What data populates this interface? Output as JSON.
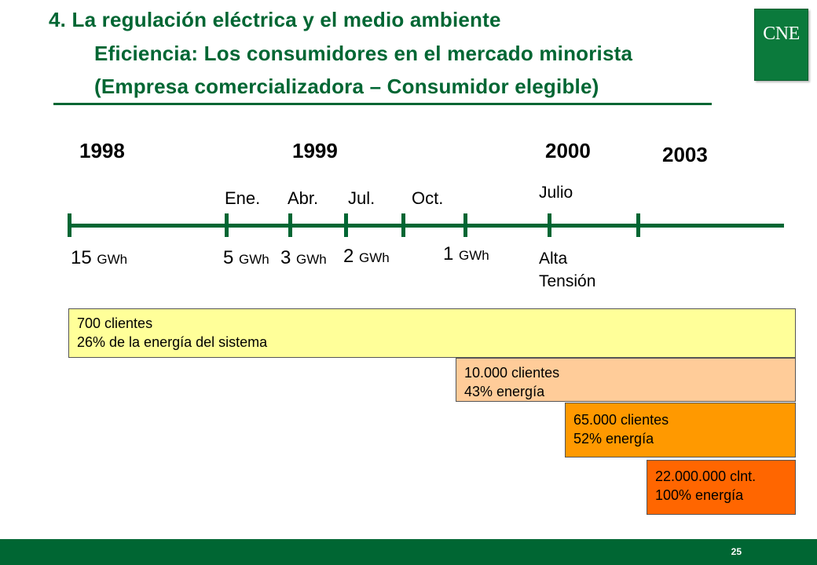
{
  "header": {
    "title_line1": "4. La regulación eléctrica y el medio ambiente",
    "title_line2": "Eficiencia: Los consumidores en el mercado minorista",
    "title_line3": "(Empresa comercializadora – Consumidor elegible)",
    "logo_text": "CNE"
  },
  "timeline": {
    "years": [
      "1998",
      "1999",
      "2000",
      "2003"
    ],
    "months": [
      "Ene.",
      "Abr.",
      "Jul.",
      "Oct."
    ],
    "month_2000": "Julio",
    "thresholds": [
      {
        "value": "15",
        "unit": "GWh"
      },
      {
        "value": "5",
        "unit": "GWh"
      },
      {
        "value": "3",
        "unit": "GWh"
      },
      {
        "value": "2",
        "unit": "GWh"
      },
      {
        "value": "1",
        "unit": "GWh"
      }
    ],
    "alta_tension_line1": "Alta",
    "alta_tension_line2": "Tensión"
  },
  "boxes": [
    {
      "line1": "700 clientes",
      "line2": "26% de la energía del sistema",
      "color": "#ffff99"
    },
    {
      "line1": "10.000 clientes",
      "line2": "43% energía",
      "color": "#ffcc99"
    },
    {
      "line1": "65.000 clientes",
      "line2": "52% energía",
      "color": "#ff9900"
    },
    {
      "line1": "22.000.000 clnt.",
      "line2": "100% energía",
      "color": "#ff6600"
    }
  ],
  "footer": {
    "page_number": "25",
    "color": "#006633"
  }
}
